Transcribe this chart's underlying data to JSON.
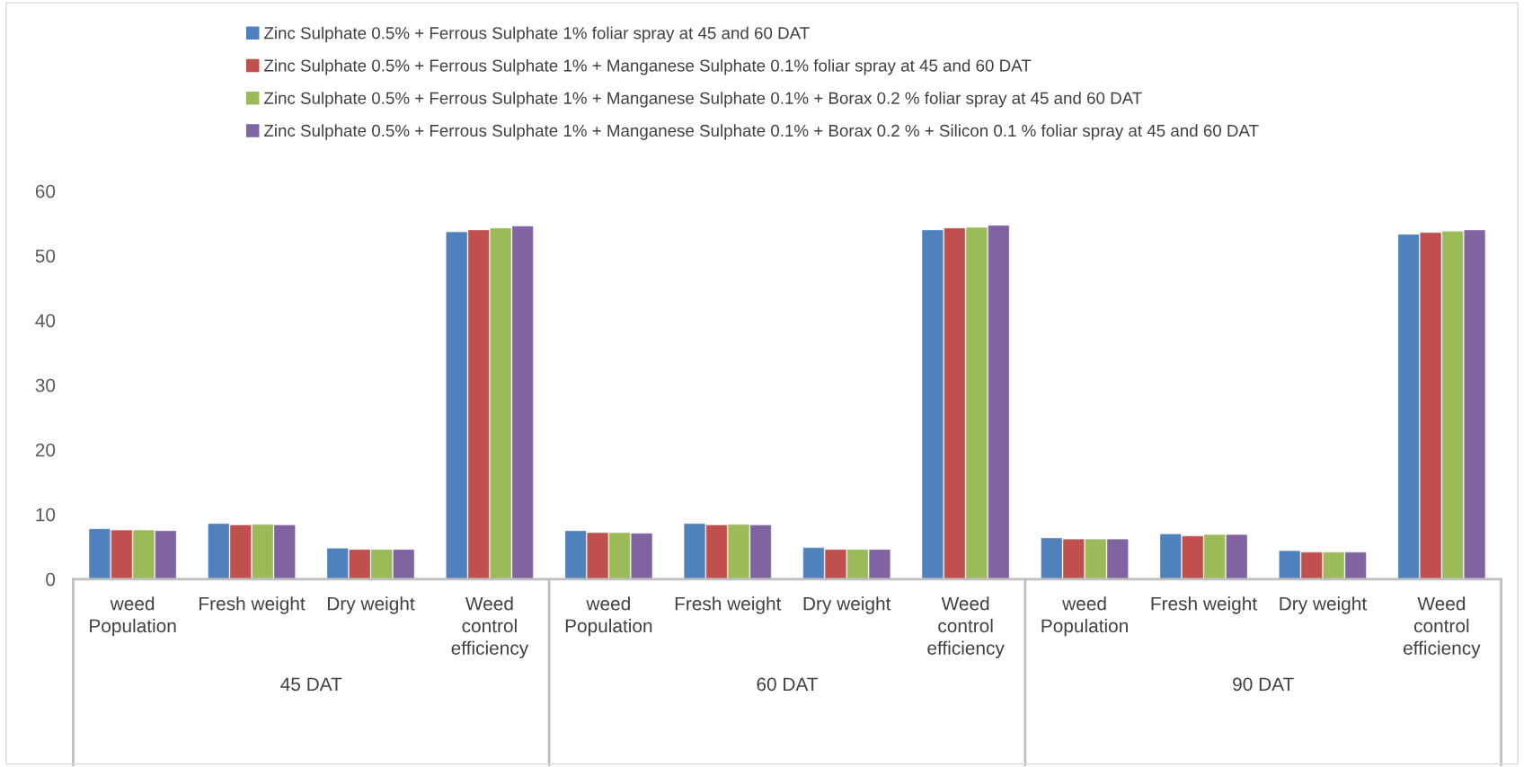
{
  "chart_data": {
    "type": "bar",
    "categories": [
      "weed\nPopulation",
      "Fresh weight",
      "Dry weight",
      "Weed\ncontrol\nefficiency",
      "weed\nPopulation",
      "Fresh weight",
      "Dry weight",
      "Weed\ncontrol\nefficiency",
      "weed\nPopulation",
      "Fresh weight",
      "Dry weight",
      "Weed\ncontrol\nefficiency"
    ],
    "series": [
      {
        "name": "Zinc Sulphate 0.5% + Ferrous Sulphate 1% foliar spray at 45 and 60 DAT",
        "color": "#4f81bd",
        "values": [
          7.7,
          8.5,
          4.7,
          53.6,
          7.4,
          8.5,
          4.8,
          53.9,
          6.3,
          6.9,
          4.3,
          53.2
        ]
      },
      {
        "name": "Zinc Sulphate 0.5% + Ferrous Sulphate 1% + Manganese Sulphate 0.1% foliar spray at 45 and 60 DAT",
        "color": "#c0504d",
        "values": [
          7.5,
          8.3,
          4.5,
          53.9,
          7.1,
          8.3,
          4.5,
          54.2,
          6.1,
          6.6,
          4.1,
          53.5
        ]
      },
      {
        "name": "Zinc Sulphate 0.5% + Ferrous Sulphate 1% + Manganese Sulphate 0.1% + Borax 0.2 % foliar spray at 45 and 60 DAT",
        "color": "#9bbb59",
        "values": [
          7.5,
          8.4,
          4.5,
          54.2,
          7.1,
          8.4,
          4.5,
          54.3,
          6.1,
          6.8,
          4.1,
          53.7
        ]
      },
      {
        "name": "Zinc Sulphate 0.5% + Ferrous Sulphate 1% + Manganese Sulphate 0.1% + Borax 0.2 % + Silicon 0.1 % foliar spray at 45 and 60 DAT",
        "color": "#8064a2",
        "values": [
          7.4,
          8.3,
          4.5,
          54.5,
          7.0,
          8.3,
          4.5,
          54.6,
          6.1,
          6.8,
          4.1,
          53.9
        ]
      }
    ],
    "annotations": [
      "45 DAT",
      "60 DAT",
      "90 DAT"
    ],
    "ylim": [
      0,
      60
    ],
    "yticks": [
      0,
      10,
      20,
      30,
      40,
      50,
      60
    ],
    "grid": false,
    "legend": "top"
  }
}
